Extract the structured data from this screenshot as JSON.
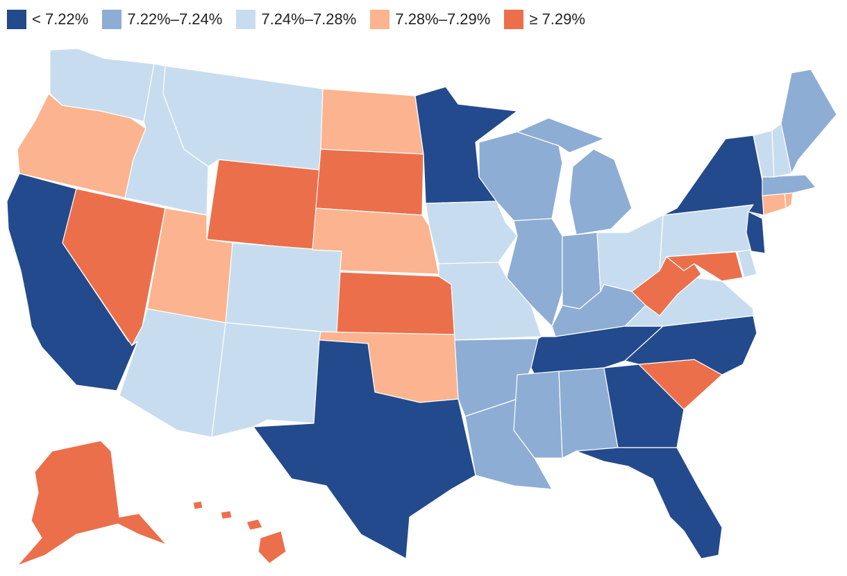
{
  "colors": {
    "c1": "#234a8c",
    "c2": "#8eadd4",
    "c3": "#c7ddef",
    "c4": "#fbb48f",
    "c5": "#ec6f4b"
  },
  "legend": [
    {
      "label": "< 7.22%",
      "color": "#234a8c"
    },
    {
      "label": "7.22%–7.24%",
      "color": "#8eadd4"
    },
    {
      "label": "7.24%–7.28%",
      "color": "#c7ddef"
    },
    {
      "label": "7.28%–7.29%",
      "color": "#fbb48f"
    },
    {
      "label": "≥ 7.29%",
      "color": "#ec6f4b"
    }
  ],
  "states": {
    "WA": "c3",
    "OR": "c4",
    "CA": "c1",
    "NV": "c5",
    "ID": "c3",
    "MT": "c3",
    "WY": "c5",
    "UT": "c4",
    "AZ": "c3",
    "CO": "c3",
    "NM": "c3",
    "ND": "c4",
    "SD": "c5",
    "NE": "c4",
    "KS": "c5",
    "OK": "c4",
    "TX": "c1",
    "MN": "c1",
    "IA": "c3",
    "MO": "c3",
    "AR": "c2",
    "LA": "c2",
    "WI": "c2",
    "IL": "c2",
    "MI": "c2",
    "IN": "c2",
    "OH": "c3",
    "KY": "c2",
    "TN": "c1",
    "MS": "c2",
    "AL": "c2",
    "GA": "c1",
    "FL": "c1",
    "SC": "c5",
    "NC": "c1",
    "VA": "c3",
    "WV": "c5",
    "MD": "c5",
    "DE": "c3",
    "PA": "c3",
    "NJ": "c1",
    "NY": "c1",
    "CT": "c4",
    "RI": "c4",
    "MA": "c2",
    "VT": "c3",
    "NH": "c3",
    "ME": "c2",
    "AK": "c5",
    "HI": "c5"
  }
}
